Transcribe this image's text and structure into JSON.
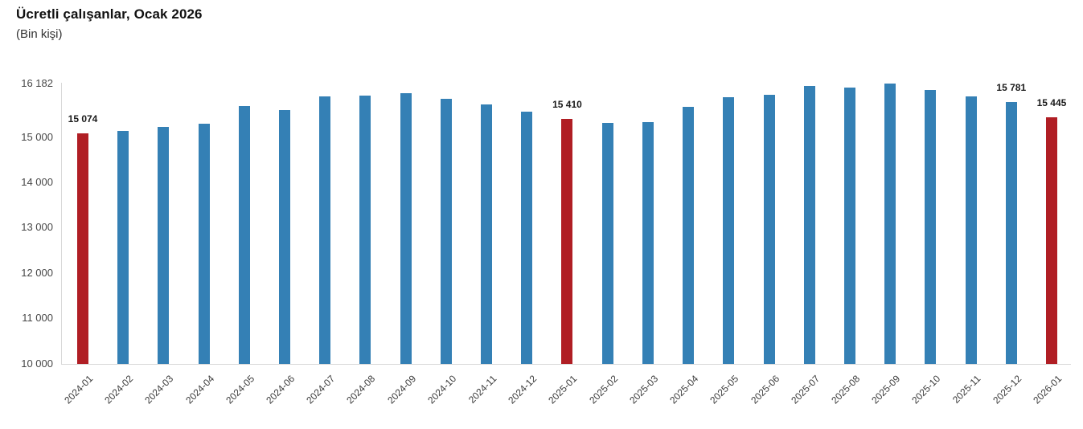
{
  "chart": {
    "title": "Ücretli çalışanlar, Ocak 2026",
    "subtitle": "(Bin kişi)"
  },
  "colors": {
    "bar": "#3480B5",
    "highlight": "#B01E24",
    "axis_line": "#D9D9D9",
    "tick_text": "#474747",
    "label_text": "#1A1A1A"
  },
  "chart_data": {
    "type": "bar",
    "title": "Ücretli çalışanlar, Ocak 2026",
    "subtitle": "(Bin kişi)",
    "unit": "Bin kişi",
    "xlabel": "",
    "ylabel": "",
    "ylim": [
      10000,
      16182
    ],
    "grid": false,
    "legend": "none",
    "yticks": [
      {
        "value": 16182,
        "label": "16 182"
      },
      {
        "value": 15000,
        "label": "15 000"
      },
      {
        "value": 14000,
        "label": "14 000"
      },
      {
        "value": 13000,
        "label": "13 000"
      },
      {
        "value": 12000,
        "label": "12 000"
      },
      {
        "value": 11000,
        "label": "11 000"
      },
      {
        "value": 10000,
        "label": "10 000"
      }
    ],
    "categories": [
      "2024-01",
      "2024-02",
      "2024-03",
      "2024-04",
      "2024-05",
      "2024-06",
      "2024-07",
      "2024-08",
      "2024-09",
      "2024-10",
      "2024-11",
      "2024-12",
      "2025-01",
      "2025-02",
      "2025-03",
      "2025-04",
      "2025-05",
      "2025-06",
      "2025-07",
      "2025-08",
      "2025-09",
      "2025-10",
      "2025-11",
      "2025-12",
      "2026-01"
    ],
    "values": [
      15074,
      15135,
      15225,
      15295,
      15690,
      15595,
      15905,
      15915,
      15975,
      15845,
      15725,
      15565,
      15410,
      15315,
      15330,
      15670,
      15880,
      15935,
      16125,
      16095,
      16182,
      16035,
      15900,
      15781,
      15445
    ],
    "highlighted_categories": [
      "2024-01",
      "2025-01",
      "2026-01"
    ],
    "data_labels": {
      "2024-01": "15 074",
      "2025-01": "15 410",
      "2025-12": "15 781",
      "2026-01": "15 445"
    }
  }
}
